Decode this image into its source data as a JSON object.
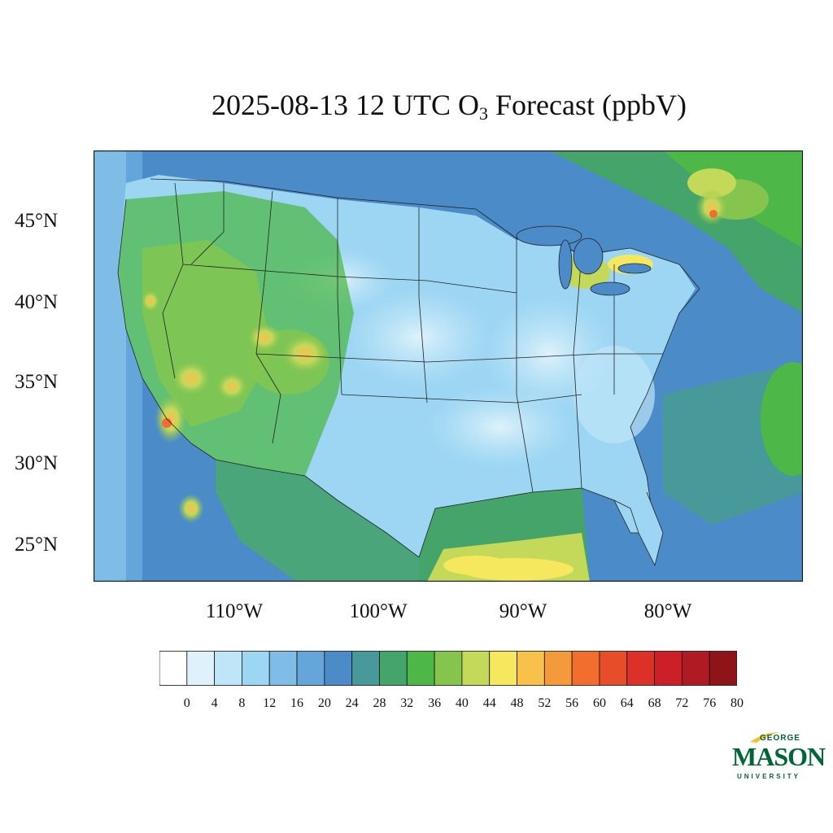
{
  "title_main": "2025-08-13 12 UTC O",
  "title_sub": "3",
  "title_tail": " Forecast (ppbV)",
  "lat_labels": [
    "45°N",
    "40°N",
    "35°N",
    "30°N",
    "25°N"
  ],
  "lon_labels": [
    "110°W",
    "100°W",
    "90°W",
    "80°W"
  ],
  "colorbar": {
    "ticks": [
      "0",
      "4",
      "8",
      "12",
      "16",
      "20",
      "24",
      "28",
      "32",
      "36",
      "40",
      "44",
      "48",
      "52",
      "56",
      "60",
      "64",
      "68",
      "72",
      "76",
      "80"
    ],
    "colors": [
      "#ffffff",
      "#dff2fb",
      "#bfe6f8",
      "#9dd6f3",
      "#7fbde6",
      "#64a5da",
      "#4a8bc8",
      "#489a9a",
      "#45a469",
      "#4db848",
      "#85c54d",
      "#c4d85a",
      "#f5e85e",
      "#f8c14c",
      "#f59a3c",
      "#f26e2f",
      "#e84d2a",
      "#dc3129",
      "#cc1f27",
      "#b01a22",
      "#8e1418"
    ]
  },
  "logo": {
    "george": "GEORGE",
    "mason": "MASON",
    "university": "UNIVERSITY",
    "color": "#006633",
    "accent": "#f2c12e"
  }
}
